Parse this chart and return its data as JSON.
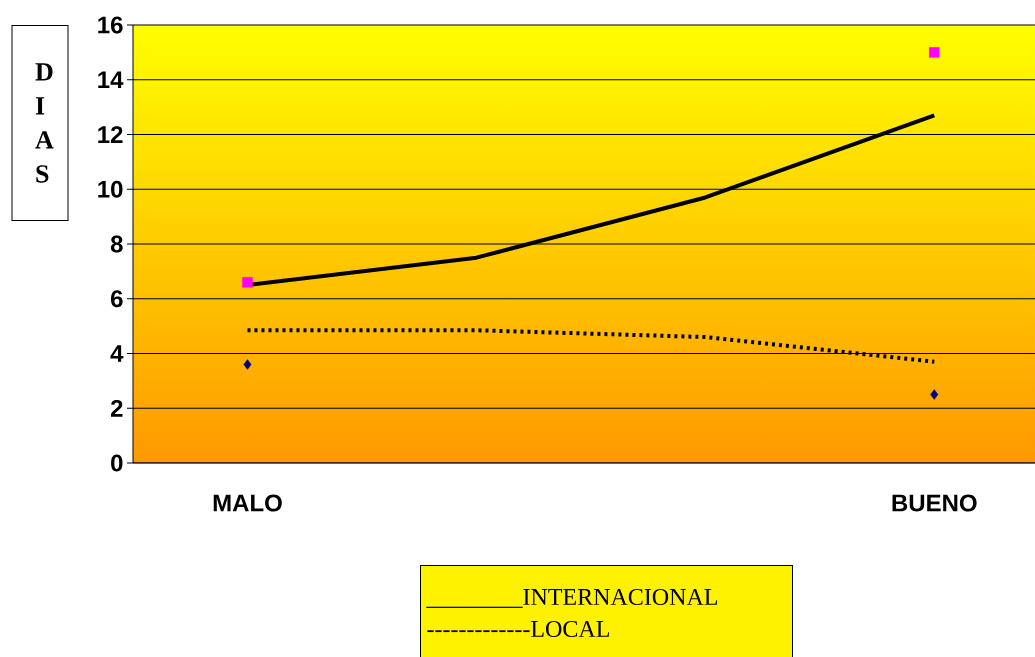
{
  "chart_data": {
    "type": "scatter",
    "ylabel": "D I A S",
    "categories": [
      "MALO",
      null,
      null,
      "BUENO"
    ],
    "series": [
      {
        "color": "#ff00ff",
        "marker": "square",
        "values": [
          6.6,
          null,
          null,
          15
        ]
      },
      {
        "color": "#000080",
        "marker": "diamond",
        "values": [
          3.6,
          null,
          null,
          2.5
        ]
      },
      {
        "type": "line",
        "color": "#000000",
        "line_style": "solid",
        "values": [
          6.5,
          7.5,
          9.7,
          12.7
        ]
      },
      {
        "type": "line",
        "color": "#000000",
        "line_style": "dotted",
        "values": [
          4.85,
          4.85,
          4.6,
          3.7
        ]
      }
    ],
    "ylim": [
      0,
      16
    ],
    "yticks": [
      0,
      2,
      4,
      6,
      8,
      10,
      12,
      14,
      16
    ],
    "grid": "y",
    "annotations": [
      "________INTERNACIONAL",
      "-------------LOCAL"
    ]
  }
}
